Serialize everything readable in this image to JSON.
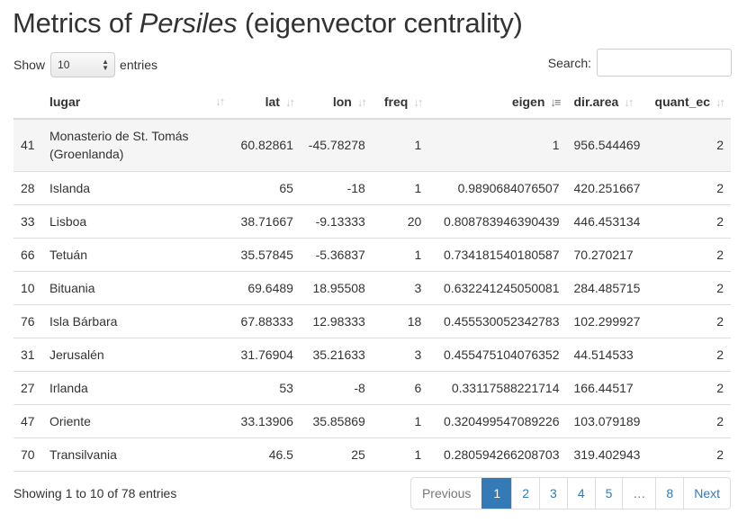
{
  "title": {
    "prefix": "Metrics of ",
    "italic": "Persiles",
    "suffix": " (eigenvector centrality)"
  },
  "length": {
    "show_label": "Show",
    "value": "10",
    "entries_label": "entries"
  },
  "search": {
    "label": "Search:",
    "value": ""
  },
  "columns": [
    "",
    "lugar",
    "lat",
    "lon",
    "freq",
    "eigen",
    "dir.area",
    "quant_ec"
  ],
  "sort_column": "eigen",
  "rows": [
    {
      "id": "41",
      "lugar": "Monasterio de St. Tomás (Groenlanda)",
      "lat": "60.82861",
      "lon": "-45.78278",
      "freq": "1",
      "eigen": "1",
      "area": "956.544469",
      "quant": "2"
    },
    {
      "id": "28",
      "lugar": "Islanda",
      "lat": "65",
      "lon": "-18",
      "freq": "1",
      "eigen": "0.9890684076507",
      "area": "420.251667",
      "quant": "2"
    },
    {
      "id": "33",
      "lugar": "Lisboa",
      "lat": "38.71667",
      "lon": "-9.13333",
      "freq": "20",
      "eigen": "0.808783946390439",
      "area": "446.453134",
      "quant": "2"
    },
    {
      "id": "66",
      "lugar": "Tetuán",
      "lat": "35.57845",
      "lon": "-5.36837",
      "freq": "1",
      "eigen": "0.734181540180587",
      "area": "70.270217",
      "quant": "2"
    },
    {
      "id": "10",
      "lugar": "Bituania",
      "lat": "69.6489",
      "lon": "18.95508",
      "freq": "3",
      "eigen": "0.632241245050081",
      "area": "284.485715",
      "quant": "2"
    },
    {
      "id": "76",
      "lugar": "Isla Bárbara",
      "lat": "67.88333",
      "lon": "12.98333",
      "freq": "18",
      "eigen": "0.455530052342783",
      "area": "102.299927",
      "quant": "2"
    },
    {
      "id": "31",
      "lugar": "Jerusalén",
      "lat": "31.76904",
      "lon": "35.21633",
      "freq": "3",
      "eigen": "0.455475104076352",
      "area": "44.514533",
      "quant": "2"
    },
    {
      "id": "27",
      "lugar": "Irlanda",
      "lat": "53",
      "lon": "-8",
      "freq": "6",
      "eigen": "0.33117588221714",
      "area": "166.44517",
      "quant": "2"
    },
    {
      "id": "47",
      "lugar": "Oriente",
      "lat": "33.13906",
      "lon": "35.85869",
      "freq": "1",
      "eigen": "0.320499547089226",
      "area": "103.079189",
      "quant": "2"
    },
    {
      "id": "70",
      "lugar": "Transilvania",
      "lat": "46.5",
      "lon": "25",
      "freq": "1",
      "eigen": "0.280594266208703",
      "area": "319.402943",
      "quant": "2"
    }
  ],
  "info": "Showing 1 to 10 of 78 entries",
  "pagination": {
    "previous": "Previous",
    "pages": [
      "1",
      "2",
      "3",
      "4",
      "5"
    ],
    "ellipsis": "…",
    "last": "8",
    "next": "Next",
    "current": "1"
  }
}
